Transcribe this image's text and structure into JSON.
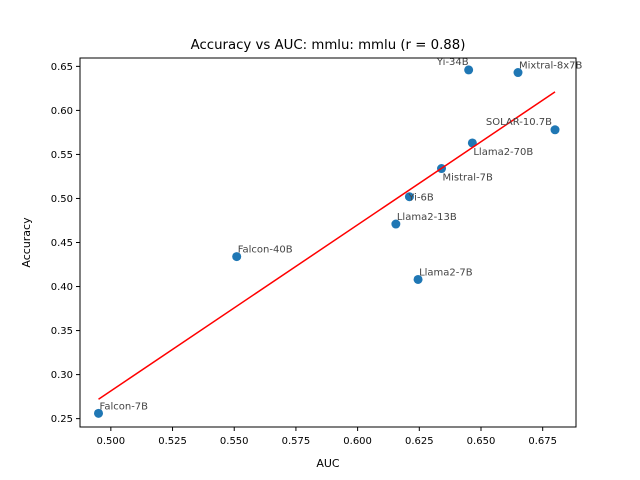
{
  "chart_data": {
    "type": "scatter",
    "title": "Accuracy vs AUC: mmlu: mmlu (r = 0.88)",
    "xlabel": "AUC",
    "ylabel": "Accuracy",
    "xlim": [
      0.4875,
      0.6885
    ],
    "ylim": [
      0.2405,
      0.6595
    ],
    "xticks": [
      "0.500",
      "0.525",
      "0.550",
      "0.575",
      "0.600",
      "0.625",
      "0.650",
      "0.675"
    ],
    "yticks": [
      "0.25",
      "0.30",
      "0.35",
      "0.40",
      "0.45",
      "0.50",
      "0.55",
      "0.60",
      "0.65"
    ],
    "grid": false,
    "point_color": "#1f77b4",
    "fit_color": "#ff0000",
    "points": [
      {
        "label": "Falcon-7B",
        "x": 0.495,
        "y": 0.256
      },
      {
        "label": "Falcon-40B",
        "x": 0.551,
        "y": 0.434
      },
      {
        "label": "Llama2-7B",
        "x": 0.6245,
        "y": 0.408
      },
      {
        "label": "Llama2-13B",
        "x": 0.6155,
        "y": 0.471
      },
      {
        "label": "Yi-6B",
        "x": 0.621,
        "y": 0.502
      },
      {
        "label": "Mistral-7B",
        "x": 0.634,
        "y": 0.534
      },
      {
        "label": "Llama2-70B",
        "x": 0.6465,
        "y": 0.563
      },
      {
        "label": "SOLAR-10.7B",
        "x": 0.68,
        "y": 0.578
      },
      {
        "label": "Yi-34B",
        "x": 0.645,
        "y": 0.646
      },
      {
        "label": "Mixtral-8x7B",
        "x": 0.665,
        "y": 0.643
      }
    ],
    "fit_line": {
      "x": [
        0.495,
        0.68
      ],
      "y": [
        0.272,
        0.621
      ]
    }
  }
}
